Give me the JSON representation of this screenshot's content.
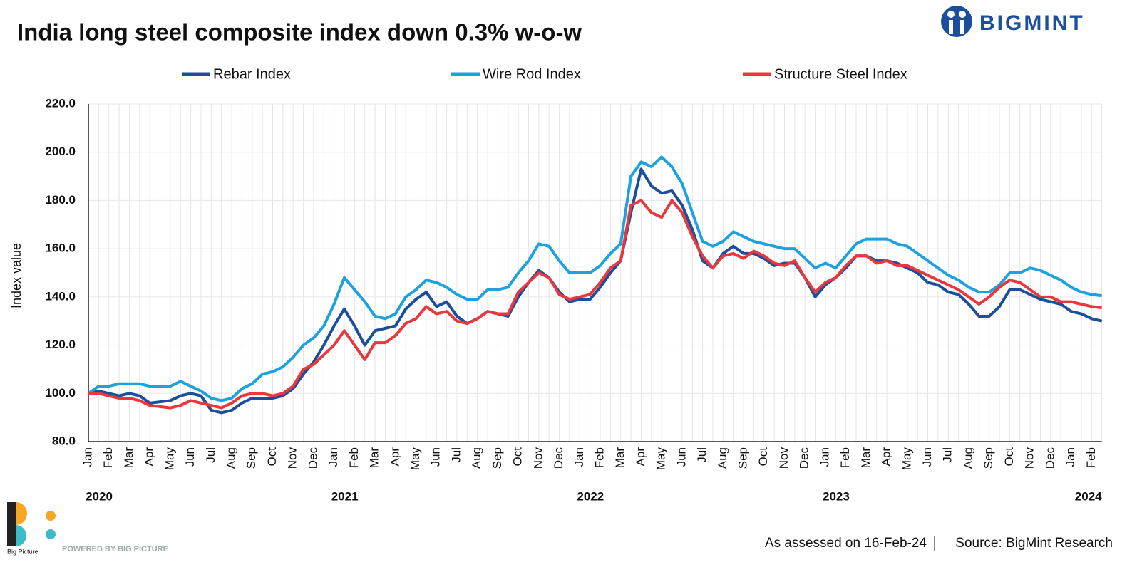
{
  "chart_data": {
    "type": "line",
    "title": "India long steel composite index down 0.3% w-o-w",
    "ylabel": "Index value",
    "categories": [
      "Jan",
      null,
      "Feb",
      null,
      "Mar",
      null,
      "Apr",
      null,
      "May",
      null,
      "Jun",
      null,
      "Jul",
      null,
      "Aug",
      null,
      "Sep",
      null,
      "Oct",
      null,
      "Nov",
      null,
      "Dec",
      null,
      "Jan",
      null,
      "Feb",
      null,
      "Mar",
      null,
      "Apr",
      null,
      "May",
      null,
      "Jun",
      null,
      "Jul",
      null,
      "Aug",
      null,
      "Sep",
      null,
      "Oct",
      null,
      "Nov",
      null,
      "Dec",
      null,
      "Jan",
      null,
      "Feb",
      null,
      "Mar",
      null,
      "Apr",
      null,
      "May",
      null,
      "Jun",
      null,
      "Jul",
      null,
      "Aug",
      null,
      "Sep",
      null,
      "Oct",
      null,
      "Nov",
      null,
      "Dec",
      null,
      "Jan",
      null,
      "Feb",
      null,
      "Mar",
      null,
      "Apr",
      null,
      "May",
      null,
      "Jun",
      null,
      "Jul",
      null,
      "Aug",
      null,
      "Sep",
      null,
      "Oct",
      null,
      "Nov",
      null,
      "Dec",
      null,
      "Jan",
      null,
      "Feb",
      null
    ],
    "years": [
      "2020",
      "2021",
      "2022",
      "2023",
      "2024"
    ],
    "series": [
      {
        "name": "Rebar Index",
        "color": "#1b4f9c",
        "values": [
          100,
          101,
          100,
          99,
          100,
          99,
          96,
          96.5,
          97,
          99,
          100,
          99,
          93,
          92,
          93,
          96,
          98,
          98,
          98,
          99,
          102,
          108,
          113,
          120,
          128,
          135,
          128,
          120,
          126,
          127,
          128,
          135,
          139,
          142,
          136,
          138,
          132,
          129,
          131,
          134,
          133,
          132,
          140,
          146,
          151,
          148,
          142,
          138,
          139,
          139,
          144,
          150,
          155,
          175,
          193,
          186,
          183,
          184,
          178,
          168,
          155,
          152,
          158,
          161,
          158,
          158,
          156,
          153,
          154,
          154,
          148,
          140,
          145,
          148,
          152,
          157,
          157,
          155,
          155,
          154,
          152,
          150,
          146,
          145,
          142,
          141,
          137,
          132,
          132,
          136,
          143,
          143,
          141,
          139,
          138,
          137,
          134,
          133,
          131,
          130
        ]
      },
      {
        "name": "Wire Rod Index",
        "color": "#1ea2df",
        "values": [
          100,
          103,
          103,
          104,
          104,
          104,
          103,
          103,
          103,
          105,
          103,
          101,
          98,
          97,
          98,
          102,
          104,
          108,
          109,
          111,
          115,
          120,
          123,
          128,
          137,
          148,
          143,
          138,
          132,
          131,
          133,
          140,
          143,
          147,
          146,
          144,
          141,
          139,
          139,
          143,
          143,
          144,
          150,
          155,
          162,
          161,
          155,
          150,
          150,
          150,
          153,
          158,
          162,
          190,
          196,
          194,
          198,
          194,
          187,
          175,
          163,
          161,
          163,
          167,
          165,
          163,
          162,
          161,
          160,
          160,
          156,
          152,
          154,
          152,
          157,
          162,
          164,
          164,
          164,
          162,
          161,
          158,
          155,
          152,
          149,
          147,
          144,
          142,
          142,
          145,
          150,
          150,
          152,
          151,
          149,
          147,
          144,
          142,
          141,
          140.5
        ]
      },
      {
        "name": "Structure Steel Index",
        "color": "#e8383d",
        "values": [
          100,
          100,
          99,
          98,
          98,
          97,
          95,
          94.5,
          94,
          95,
          97,
          96,
          95,
          94,
          96,
          99,
          100,
          100,
          99,
          100,
          103,
          110,
          112,
          116,
          120,
          126,
          120,
          114,
          121,
          121,
          124,
          129,
          131,
          136,
          133,
          134,
          130,
          129,
          131,
          134,
          133,
          133,
          142,
          146,
          150,
          148,
          141,
          139,
          140,
          141,
          146,
          152,
          155,
          178,
          180,
          175,
          173,
          180,
          175,
          165,
          157,
          152,
          157,
          158,
          156,
          159,
          157,
          154,
          153,
          155,
          148,
          142,
          146,
          148,
          153,
          157,
          157,
          154,
          155,
          153,
          153,
          151,
          149,
          147,
          145,
          143,
          140,
          137,
          140,
          144,
          147,
          146,
          143,
          140,
          140,
          138,
          138,
          137,
          136,
          135.5
        ]
      }
    ],
    "ylim": [
      80,
      220
    ],
    "yticks": [
      {
        "value": 80,
        "label": "80.0"
      },
      {
        "value": 100,
        "label": "100.0"
      },
      {
        "value": 120,
        "label": "120.0"
      },
      {
        "value": 140,
        "label": "140.0"
      },
      {
        "value": 160,
        "label": "160.0"
      },
      {
        "value": 180,
        "label": "180.0"
      },
      {
        "value": 200,
        "label": "200.0"
      },
      {
        "value": 220,
        "label": "220.0"
      }
    ],
    "grid": true,
    "legend": "top"
  },
  "logo": "BIGMINT",
  "brand_small": "Big Picture",
  "brand": "POWERED BY BIG PICTURE",
  "footer": {
    "assessed": "As assessed on 16-Feb-24",
    "source": "Source: BigMint Research"
  }
}
